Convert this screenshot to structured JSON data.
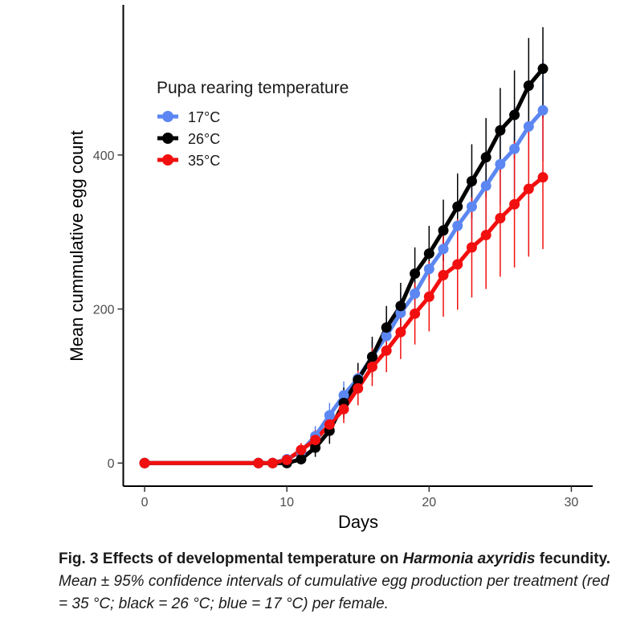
{
  "chart_data": {
    "type": "line",
    "xlabel": "Days",
    "ylabel": "Mean cummulative egg count",
    "xlim": [
      -1.5,
      31.5
    ],
    "ylim": [
      -30,
      595
    ],
    "x_ticks": [
      0,
      10,
      20,
      30
    ],
    "y_ticks": [
      0,
      200,
      400
    ],
    "grid": false,
    "error_bars": "95% confidence interval",
    "legend": {
      "title": "Pupa rearing temperature",
      "position": "top-left"
    },
    "series": [
      {
        "name": "17°C",
        "color": "#5c87f2",
        "x": [
          0,
          8,
          9,
          10,
          11,
          12,
          13,
          14,
          15,
          16,
          17,
          18,
          19,
          20,
          21,
          22,
          23,
          24,
          25,
          26,
          27,
          28
        ],
        "y": [
          0,
          0,
          0,
          5,
          15,
          35,
          62,
          88,
          110,
          138,
          165,
          195,
          220,
          252,
          278,
          308,
          333,
          360,
          388,
          408,
          437,
          458
        ],
        "ci_low": [
          0,
          0,
          0,
          2,
          8,
          22,
          45,
          70,
          90,
          118,
          140,
          168,
          192,
          222,
          244,
          270,
          290,
          312,
          335,
          352,
          376,
          392
        ],
        "ci_high": [
          0,
          0,
          0,
          8,
          22,
          48,
          78,
          106,
          130,
          158,
          190,
          222,
          248,
          282,
          312,
          346,
          376,
          408,
          441,
          464,
          498,
          524
        ]
      },
      {
        "name": "26°C",
        "color": "#000000",
        "x": [
          0,
          8,
          9,
          10,
          11,
          12,
          13,
          14,
          15,
          16,
          17,
          18,
          19,
          20,
          21,
          22,
          23,
          24,
          25,
          26,
          27,
          28
        ],
        "y": [
          0,
          0,
          0,
          0,
          5,
          20,
          42,
          78,
          108,
          138,
          176,
          204,
          246,
          272,
          302,
          333,
          366,
          397,
          432,
          452,
          490,
          512
        ],
        "ci_low": [
          0,
          0,
          0,
          0,
          0,
          8,
          25,
          58,
          86,
          112,
          148,
          174,
          212,
          236,
          262,
          290,
          318,
          345,
          378,
          395,
          428,
          448
        ],
        "ci_high": [
          0,
          0,
          0,
          2,
          12,
          35,
          60,
          98,
          130,
          164,
          204,
          234,
          280,
          308,
          342,
          376,
          414,
          448,
          487,
          510,
          552,
          566
        ]
      },
      {
        "name": "35°C",
        "color": "#f20f0f",
        "x": [
          0,
          8,
          9,
          10,
          11,
          12,
          13,
          14,
          15,
          16,
          17,
          18,
          19,
          20,
          21,
          22,
          23,
          24,
          25,
          26,
          27,
          28
        ],
        "y": [
          0,
          0,
          0,
          4,
          17,
          30,
          50,
          70,
          97,
          125,
          146,
          170,
          194,
          216,
          244,
          258,
          280,
          296,
          318,
          336,
          356,
          371
        ],
        "ci_low": [
          0,
          0,
          0,
          1,
          8,
          18,
          35,
          52,
          75,
          100,
          118,
          135,
          154,
          171,
          190,
          199,
          215,
          226,
          242,
          254,
          268,
          278
        ],
        "ci_high": [
          0,
          0,
          0,
          7,
          26,
          43,
          66,
          88,
          120,
          150,
          175,
          205,
          234,
          262,
          298,
          317,
          345,
          366,
          394,
          418,
          444,
          464
        ]
      }
    ]
  },
  "caption": {
    "label": "Fig. 3 Effects of developmental temperature on ",
    "species": "Harmonia axyridis",
    "label_end": "fecundity.",
    "text": " Mean ± 95% confidence intervals of cumulative egg production per treatment (red = 35 °C; black = 26 °C; blue = 17 °C) per female."
  }
}
